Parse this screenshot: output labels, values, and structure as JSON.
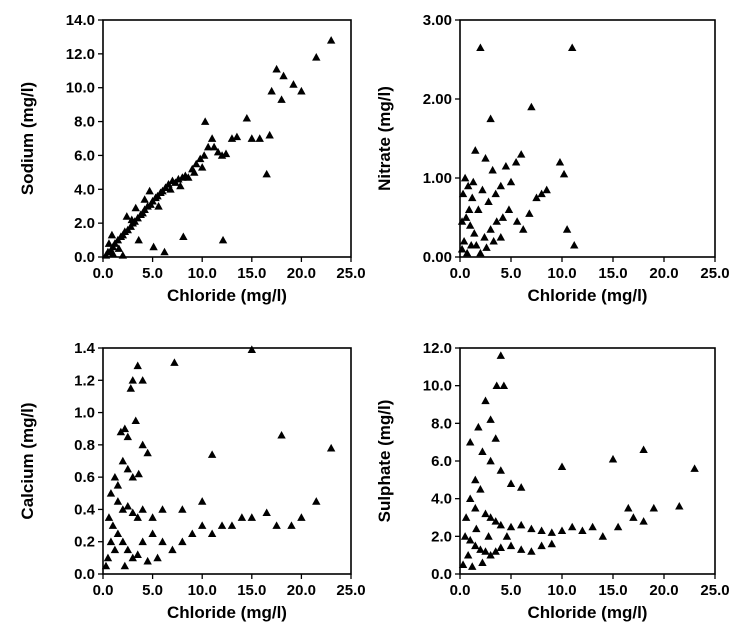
{
  "chart_data": [
    {
      "type": "scatter",
      "id": "sodium",
      "xlabel": "Chloride (mg/l)",
      "ylabel": "Sodium (mg/l)",
      "xlim": [
        0,
        25
      ],
      "ylim": [
        0,
        14
      ],
      "xticks": [
        "0.0",
        "5.0",
        "10.0",
        "15.0",
        "20.0",
        "25.0"
      ],
      "yticks": [
        "0.0",
        "2.0",
        "4.0",
        "6.0",
        "8.0",
        "10.0",
        "12.0",
        "14.0"
      ],
      "grid": false,
      "marker": "triangle",
      "points": [
        [
          0.3,
          0.1
        ],
        [
          0.5,
          0.3
        ],
        [
          0.8,
          0.4
        ],
        [
          1.0,
          0.6
        ],
        [
          1.2,
          0.8
        ],
        [
          1.5,
          1.0
        ],
        [
          0.6,
          0.8
        ],
        [
          1.8,
          1.2
        ],
        [
          2.0,
          1.3
        ],
        [
          2.2,
          1.5
        ],
        [
          2.5,
          1.6
        ],
        [
          2.8,
          1.8
        ],
        [
          1.6,
          0.5
        ],
        [
          3.0,
          2.0
        ],
        [
          3.2,
          2.1
        ],
        [
          3.5,
          2.3
        ],
        [
          3.8,
          2.5
        ],
        [
          4.0,
          2.6
        ],
        [
          4.2,
          2.8
        ],
        [
          2.4,
          2.4
        ],
        [
          4.5,
          3.0
        ],
        [
          4.8,
          3.1
        ],
        [
          5.0,
          3.3
        ],
        [
          5.3,
          3.5
        ],
        [
          5.5,
          3.6
        ],
        [
          3.6,
          1.0
        ],
        [
          5.8,
          3.8
        ],
        [
          6.0,
          3.9
        ],
        [
          6.3,
          4.1
        ],
        [
          6.6,
          4.3
        ],
        [
          7.0,
          4.5
        ],
        [
          7.3,
          4.4
        ],
        [
          7.6,
          4.6
        ],
        [
          8.0,
          4.7
        ],
        [
          8.3,
          4.8
        ],
        [
          8.6,
          4.7
        ],
        [
          4.2,
          3.4
        ],
        [
          9.0,
          5.2
        ],
        [
          9.4,
          5.5
        ],
        [
          9.8,
          5.8
        ],
        [
          10.2,
          6.0
        ],
        [
          10.6,
          6.5
        ],
        [
          10.3,
          8.0
        ],
        [
          11.2,
          6.5
        ],
        [
          11.6,
          6.2
        ],
        [
          12.0,
          6.0
        ],
        [
          12.4,
          6.1
        ],
        [
          11.0,
          7.0
        ],
        [
          13.0,
          7.0
        ],
        [
          13.5,
          7.1
        ],
        [
          14.5,
          8.2
        ],
        [
          15.0,
          7.0
        ],
        [
          15.8,
          7.0
        ],
        [
          16.5,
          4.9
        ],
        [
          16.8,
          7.2
        ],
        [
          17.0,
          9.8
        ],
        [
          17.5,
          11.1
        ],
        [
          18.2,
          10.7
        ],
        [
          18.0,
          9.3
        ],
        [
          19.2,
          10.2
        ],
        [
          20.0,
          9.8
        ],
        [
          21.5,
          11.8
        ],
        [
          23.0,
          12.8
        ],
        [
          6.2,
          0.3
        ],
        [
          5.1,
          0.6
        ],
        [
          8.1,
          1.2
        ],
        [
          2.0,
          0.1
        ],
        [
          1.0,
          0.2
        ],
        [
          3.3,
          2.9
        ],
        [
          0.9,
          1.3
        ],
        [
          4.7,
          3.9
        ],
        [
          6.8,
          4.0
        ],
        [
          7.8,
          4.2
        ],
        [
          9.2,
          5.0
        ],
        [
          2.9,
          2.2
        ],
        [
          5.6,
          3.0
        ],
        [
          10.0,
          5.3
        ],
        [
          12.1,
          1.0
        ]
      ]
    },
    {
      "type": "scatter",
      "id": "nitrate",
      "xlabel": "Chloride (mg/l)",
      "ylabel": "Nitrate (mg/l)",
      "xlim": [
        0,
        25
      ],
      "ylim": [
        0,
        3
      ],
      "xticks": [
        "0.0",
        "5.0",
        "10.0",
        "15.0",
        "20.0",
        "25.0"
      ],
      "yticks": [
        "0.00",
        "1.00",
        "2.00",
        "3.00"
      ],
      "grid": false,
      "marker": "triangle",
      "points": [
        [
          2.0,
          2.65
        ],
        [
          11.0,
          2.65
        ],
        [
          3.0,
          1.75
        ],
        [
          7.0,
          1.9
        ],
        [
          1.5,
          1.35
        ],
        [
          2.5,
          1.25
        ],
        [
          3.2,
          1.1
        ],
        [
          4.5,
          1.15
        ],
        [
          5.5,
          1.2
        ],
        [
          6.0,
          1.3
        ],
        [
          9.8,
          1.2
        ],
        [
          10.2,
          1.05
        ],
        [
          8.0,
          0.8
        ],
        [
          7.5,
          0.75
        ],
        [
          8.5,
          0.85
        ],
        [
          4.0,
          0.9
        ],
        [
          5.0,
          0.95
        ],
        [
          3.5,
          0.8
        ],
        [
          2.8,
          0.7
        ],
        [
          2.2,
          0.85
        ],
        [
          1.8,
          0.6
        ],
        [
          1.2,
          0.75
        ],
        [
          0.8,
          0.9
        ],
        [
          0.5,
          1.0
        ],
        [
          0.3,
          0.8
        ],
        [
          0.6,
          0.5
        ],
        [
          1.0,
          0.4
        ],
        [
          1.4,
          0.3
        ],
        [
          0.4,
          0.2
        ],
        [
          0.2,
          0.1
        ],
        [
          1.6,
          0.15
        ],
        [
          2.4,
          0.25
        ],
        [
          3.0,
          0.35
        ],
        [
          3.6,
          0.45
        ],
        [
          4.2,
          0.5
        ],
        [
          4.8,
          0.6
        ],
        [
          5.6,
          0.45
        ],
        [
          6.2,
          0.35
        ],
        [
          6.8,
          0.55
        ],
        [
          10.5,
          0.35
        ],
        [
          11.2,
          0.15
        ],
        [
          0.7,
          0.05
        ],
        [
          1.1,
          0.15
        ],
        [
          2.0,
          0.05
        ],
        [
          2.6,
          0.12
        ],
        [
          3.3,
          0.2
        ],
        [
          4.0,
          0.25
        ],
        [
          0.9,
          0.6
        ],
        [
          1.3,
          0.95
        ],
        [
          0.2,
          0.45
        ]
      ]
    },
    {
      "type": "scatter",
      "id": "calcium",
      "xlabel": "Chloride (mg/l)",
      "ylabel": "Calcium (mg/l)",
      "xlim": [
        0,
        25
      ],
      "ylim": [
        0,
        1.4
      ],
      "xticks": [
        "0.0",
        "5.0",
        "10.0",
        "15.0",
        "20.0",
        "25.0"
      ],
      "yticks": [
        "0.0",
        "0.2",
        "0.4",
        "0.6",
        "0.8",
        "1.0",
        "1.2",
        "1.4"
      ],
      "grid": false,
      "marker": "triangle",
      "points": [
        [
          15.0,
          1.39
        ],
        [
          7.2,
          1.31
        ],
        [
          3.5,
          1.29
        ],
        [
          3.0,
          1.2
        ],
        [
          2.8,
          1.15
        ],
        [
          4.0,
          1.2
        ],
        [
          2.2,
          0.9
        ],
        [
          1.8,
          0.88
        ],
        [
          2.5,
          0.85
        ],
        [
          3.3,
          0.95
        ],
        [
          4.0,
          0.8
        ],
        [
          4.5,
          0.75
        ],
        [
          11.0,
          0.74
        ],
        [
          18.0,
          0.86
        ],
        [
          23.0,
          0.78
        ],
        [
          2.0,
          0.7
        ],
        [
          2.5,
          0.65
        ],
        [
          3.0,
          0.6
        ],
        [
          3.6,
          0.62
        ],
        [
          1.5,
          0.55
        ],
        [
          1.2,
          0.6
        ],
        [
          0.8,
          0.5
        ],
        [
          1.5,
          0.45
        ],
        [
          2.0,
          0.4
        ],
        [
          2.5,
          0.42
        ],
        [
          3.0,
          0.38
        ],
        [
          3.5,
          0.35
        ],
        [
          4.0,
          0.4
        ],
        [
          5.0,
          0.35
        ],
        [
          6.0,
          0.4
        ],
        [
          8.0,
          0.4
        ],
        [
          10.0,
          0.45
        ],
        [
          12.0,
          0.3
        ],
        [
          13.0,
          0.3
        ],
        [
          14.0,
          0.35
        ],
        [
          15.0,
          0.35
        ],
        [
          16.5,
          0.38
        ],
        [
          17.5,
          0.3
        ],
        [
          19.0,
          0.3
        ],
        [
          20.0,
          0.35
        ],
        [
          21.5,
          0.45
        ],
        [
          1.0,
          0.3
        ],
        [
          1.5,
          0.25
        ],
        [
          2.0,
          0.2
        ],
        [
          2.5,
          0.15
        ],
        [
          3.0,
          0.1
        ],
        [
          0.5,
          0.1
        ],
        [
          0.8,
          0.2
        ],
        [
          1.2,
          0.15
        ],
        [
          4.0,
          0.2
        ],
        [
          5.0,
          0.25
        ],
        [
          6.0,
          0.2
        ],
        [
          7.0,
          0.15
        ],
        [
          8.0,
          0.2
        ],
        [
          9.0,
          0.25
        ],
        [
          10.0,
          0.3
        ],
        [
          11.0,
          0.25
        ],
        [
          0.3,
          0.05
        ],
        [
          0.6,
          0.35
        ],
        [
          2.2,
          0.05
        ],
        [
          3.5,
          0.12
        ],
        [
          4.5,
          0.08
        ],
        [
          5.5,
          0.1
        ]
      ]
    },
    {
      "type": "scatter",
      "id": "sulphate",
      "xlabel": "Chloride (mg/l)",
      "ylabel": "Sulphate (mg/l)",
      "xlim": [
        0,
        25
      ],
      "ylim": [
        0,
        12
      ],
      "xticks": [
        "0.0",
        "5.0",
        "10.0",
        "15.0",
        "20.0",
        "25.0"
      ],
      "yticks": [
        "0.0",
        "2.0",
        "4.0",
        "6.0",
        "8.0",
        "10.0",
        "12.0"
      ],
      "grid": false,
      "marker": "triangle",
      "points": [
        [
          4.0,
          11.6
        ],
        [
          3.6,
          10.0
        ],
        [
          4.3,
          10.0
        ],
        [
          2.5,
          9.2
        ],
        [
          3.0,
          8.2
        ],
        [
          1.8,
          7.8
        ],
        [
          1.0,
          7.0
        ],
        [
          3.5,
          7.2
        ],
        [
          2.2,
          6.5
        ],
        [
          3.0,
          6.0
        ],
        [
          4.0,
          5.5
        ],
        [
          1.5,
          5.0
        ],
        [
          2.0,
          4.5
        ],
        [
          5.0,
          4.8
        ],
        [
          6.0,
          4.6
        ],
        [
          10.0,
          5.7
        ],
        [
          15.0,
          6.1
        ],
        [
          18.0,
          6.6
        ],
        [
          23.0,
          5.6
        ],
        [
          1.0,
          4.0
        ],
        [
          1.5,
          3.5
        ],
        [
          2.5,
          3.2
        ],
        [
          3.0,
          3.0
        ],
        [
          3.5,
          2.8
        ],
        [
          4.0,
          2.6
        ],
        [
          5.0,
          2.5
        ],
        [
          6.0,
          2.6
        ],
        [
          7.0,
          2.4
        ],
        [
          8.0,
          2.3
        ],
        [
          9.0,
          2.2
        ],
        [
          10.0,
          2.3
        ],
        [
          11.0,
          2.5
        ],
        [
          12.0,
          2.3
        ],
        [
          13.0,
          2.5
        ],
        [
          14.0,
          2.0
        ],
        [
          15.5,
          2.5
        ],
        [
          16.5,
          3.5
        ],
        [
          17.0,
          3.0
        ],
        [
          18.0,
          2.8
        ],
        [
          19.0,
          3.5
        ],
        [
          21.5,
          3.6
        ],
        [
          0.5,
          2.0
        ],
        [
          1.0,
          1.8
        ],
        [
          1.5,
          1.5
        ],
        [
          2.0,
          1.3
        ],
        [
          2.5,
          1.2
        ],
        [
          3.0,
          1.0
        ],
        [
          3.5,
          1.2
        ],
        [
          4.0,
          1.4
        ],
        [
          5.0,
          1.5
        ],
        [
          6.0,
          1.3
        ],
        [
          7.0,
          1.2
        ],
        [
          8.0,
          1.5
        ],
        [
          9.0,
          1.6
        ],
        [
          0.3,
          0.5
        ],
        [
          0.8,
          1.0
        ],
        [
          1.2,
          0.4
        ],
        [
          2.2,
          0.6
        ],
        [
          1.6,
          2.4
        ],
        [
          2.8,
          2.0
        ],
        [
          0.6,
          3.0
        ],
        [
          4.6,
          2.0
        ]
      ]
    }
  ]
}
